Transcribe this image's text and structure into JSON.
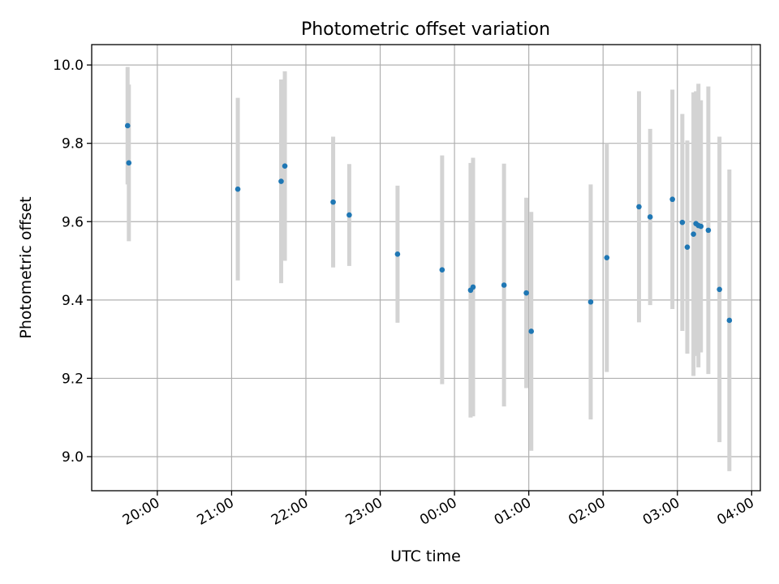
{
  "chart_data": {
    "type": "scatter",
    "title": "Photometric offset variation",
    "xlabel": "UTC time",
    "ylabel": "Photometric offset",
    "grid": true,
    "xlim": [
      "19:07",
      "04:07"
    ],
    "ylim": [
      8.913,
      10.052
    ],
    "x_tick_labels": [
      "20:00",
      "21:00",
      "22:00",
      "23:00",
      "00:00",
      "01:00",
      "02:00",
      "03:00",
      "04:00"
    ],
    "y_ticks": [
      9.0,
      9.2,
      9.4,
      9.6,
      9.8,
      10.0
    ],
    "y_tick_labels": [
      "9.0",
      "9.2",
      "9.4",
      "9.6",
      "9.8",
      "10.0"
    ],
    "colors": {
      "point": "#1f77b4",
      "errorbar": "#d3d3d3"
    },
    "points": [
      {
        "x": "19:36",
        "y": 9.845,
        "yerr": 0.15
      },
      {
        "x": "19:37",
        "y": 9.75,
        "yerr": 0.2
      },
      {
        "x": "21:05",
        "y": 9.683,
        "yerr": 0.233
      },
      {
        "x": "21:40",
        "y": 9.703,
        "yerr": 0.26
      },
      {
        "x": "21:43",
        "y": 9.742,
        "yerr": 0.242
      },
      {
        "x": "22:22",
        "y": 9.65,
        "yerr": 0.167
      },
      {
        "x": "22:35",
        "y": 9.617,
        "yerr": 0.13
      },
      {
        "x": "23:14",
        "y": 9.517,
        "yerr": 0.175
      },
      {
        "x": "23:50",
        "y": 9.477,
        "yerr": 0.292
      },
      {
        "x": "00:13",
        "y": 9.425,
        "yerr": 0.325
      },
      {
        "x": "00:15",
        "y": 9.433,
        "yerr": 0.33
      },
      {
        "x": "00:40",
        "y": 9.438,
        "yerr": 0.31
      },
      {
        "x": "00:58",
        "y": 9.418,
        "yerr": 0.243
      },
      {
        "x": "01:02",
        "y": 9.32,
        "yerr": 0.305
      },
      {
        "x": "01:50",
        "y": 9.395,
        "yerr": 0.3
      },
      {
        "x": "02:03",
        "y": 9.508,
        "yerr": 0.292
      },
      {
        "x": "02:29",
        "y": 9.638,
        "yerr": 0.295
      },
      {
        "x": "02:38",
        "y": 9.612,
        "yerr": 0.225
      },
      {
        "x": "02:56",
        "y": 9.657,
        "yerr": 0.28
      },
      {
        "x": "03:04",
        "y": 9.598,
        "yerr": 0.277
      },
      {
        "x": "03:08",
        "y": 9.535,
        "yerr": 0.272
      },
      {
        "x": "03:13",
        "y": 9.568,
        "yerr": 0.362
      },
      {
        "x": "03:15",
        "y": 9.595,
        "yerr": 0.338
      },
      {
        "x": "03:17",
        "y": 9.59,
        "yerr": 0.362
      },
      {
        "x": "03:19",
        "y": 9.588,
        "yerr": 0.322
      },
      {
        "x": "03:25",
        "y": 9.578,
        "yerr": 0.367
      },
      {
        "x": "03:34",
        "y": 9.427,
        "yerr": 0.39
      },
      {
        "x": "03:42",
        "y": 9.348,
        "yerr": 0.385
      }
    ]
  }
}
